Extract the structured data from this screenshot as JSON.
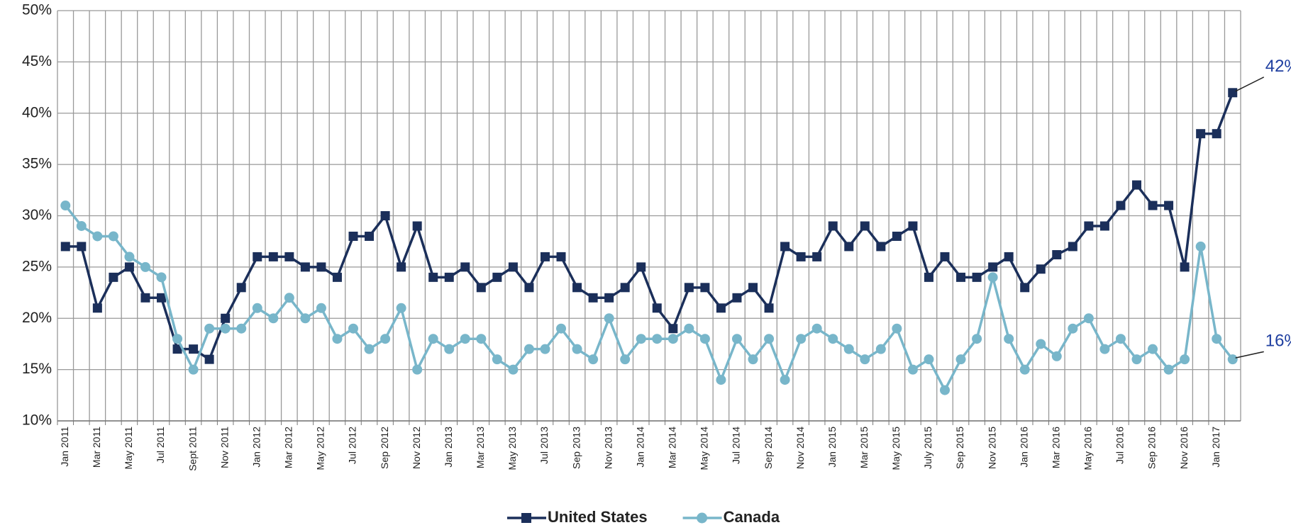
{
  "chart_data": {
    "type": "line",
    "categories": [
      "Jan 2011",
      null,
      "Mar 2011",
      null,
      "May 2011",
      null,
      "Jul 2011",
      null,
      "Sept 2011",
      null,
      "Nov 2011",
      null,
      "Jan 2012",
      null,
      "Mar 2012",
      null,
      "May 2012",
      null,
      "Jul 2012",
      null,
      "Sep 2012",
      null,
      "Nov 2012",
      null,
      "Jan 2013",
      null,
      "Mar 2013",
      null,
      "May 2013",
      null,
      "Jul 2013",
      null,
      "Sep 2013",
      null,
      "Nov 2013",
      null,
      "Jan 2014",
      null,
      "Mar 2014",
      null,
      "May 2014",
      null,
      "Jul 2014",
      null,
      "Sep 2014",
      null,
      "Nov 2014",
      null,
      "Jan 2015",
      null,
      "Mar 2015",
      null,
      "May 2015",
      null,
      "July 2015",
      null,
      "Sep 2015",
      null,
      "Nov 2015",
      null,
      "Jan 2016",
      null,
      "Mar 2016",
      null,
      "May 2016",
      null,
      "Jul 2016",
      null,
      "Sep 2016",
      null,
      "Nov 2016",
      null,
      "Jan 2017",
      null
    ],
    "series": [
      {
        "name": "United States",
        "color": "#1b2f5a",
        "marker": "square",
        "values": [
          27,
          27,
          21,
          24,
          25,
          22,
          22,
          17,
          17,
          16,
          20,
          23,
          26,
          26,
          26,
          25,
          25,
          24,
          28,
          28,
          30,
          25,
          29,
          24,
          24,
          25,
          23,
          24,
          25,
          23,
          26,
          26,
          23,
          22,
          22,
          23,
          25,
          21,
          19,
          23,
          23,
          21,
          22,
          23,
          21,
          27,
          26,
          26,
          29,
          27,
          29,
          27,
          28,
          29,
          24,
          26,
          24,
          24,
          25,
          26,
          23,
          24.8,
          26.2,
          27,
          29,
          29,
          31,
          33,
          31,
          31,
          25,
          38,
          38,
          42
        ],
        "value_labels": [
          null,
          null,
          null,
          null,
          null,
          null,
          null,
          null,
          null,
          null,
          null,
          null,
          null,
          null,
          null,
          null,
          null,
          null,
          null,
          null,
          null,
          null,
          null,
          null,
          null,
          null,
          null,
          null,
          null,
          null,
          null,
          null,
          null,
          null,
          null,
          null,
          null,
          null,
          null,
          null,
          null,
          null,
          null,
          null,
          null,
          null,
          null,
          null,
          null,
          null,
          null,
          null,
          null,
          null,
          null,
          null,
          null,
          null,
          null,
          null,
          null,
          null,
          null,
          null,
          null,
          null,
          null,
          null,
          null,
          null,
          null,
          null,
          null,
          "42%"
        ]
      },
      {
        "name": "Canada",
        "color": "#78b6ca",
        "marker": "circle",
        "values": [
          31,
          29,
          28,
          28,
          26,
          25,
          24,
          18,
          15,
          19,
          19,
          19,
          21,
          20,
          22,
          20,
          21,
          18,
          19,
          17,
          18,
          21,
          15,
          18,
          17,
          18,
          18,
          16,
          15,
          17,
          17,
          19,
          17,
          16,
          20,
          16,
          18,
          18,
          18,
          19,
          18,
          14,
          18,
          16,
          18,
          14,
          18,
          19,
          18,
          17,
          16,
          17,
          19,
          15,
          16,
          13,
          16,
          18,
          24,
          18,
          15,
          17.5,
          16.3,
          19,
          20,
          17,
          18,
          16,
          17,
          15,
          16,
          27,
          18,
          16
        ],
        "value_labels": [
          null,
          null,
          null,
          null,
          null,
          null,
          null,
          null,
          null,
          null,
          null,
          null,
          null,
          null,
          null,
          null,
          null,
          null,
          null,
          null,
          null,
          null,
          null,
          null,
          null,
          null,
          null,
          null,
          null,
          null,
          null,
          null,
          null,
          null,
          null,
          null,
          null,
          null,
          null,
          null,
          null,
          null,
          null,
          null,
          null,
          null,
          null,
          null,
          null,
          null,
          null,
          null,
          null,
          null,
          null,
          null,
          null,
          null,
          null,
          null,
          null,
          null,
          null,
          null,
          null,
          null,
          null,
          null,
          null,
          null,
          null,
          null,
          null,
          "16%"
        ]
      }
    ],
    "ylim": [
      10,
      50
    ],
    "yticks": [
      {
        "value": 10,
        "label": "10%"
      },
      {
        "value": 15,
        "label": "15%"
      },
      {
        "value": 20,
        "label": "20%"
      },
      {
        "value": 25,
        "label": "25%"
      },
      {
        "value": 30,
        "label": "30%"
      },
      {
        "value": 35,
        "label": "35%"
      },
      {
        "value": 40,
        "label": "40%"
      },
      {
        "value": 45,
        "label": "45%"
      },
      {
        "value": 50,
        "label": "50%"
      }
    ],
    "grid": true,
    "legend": "bottom"
  }
}
